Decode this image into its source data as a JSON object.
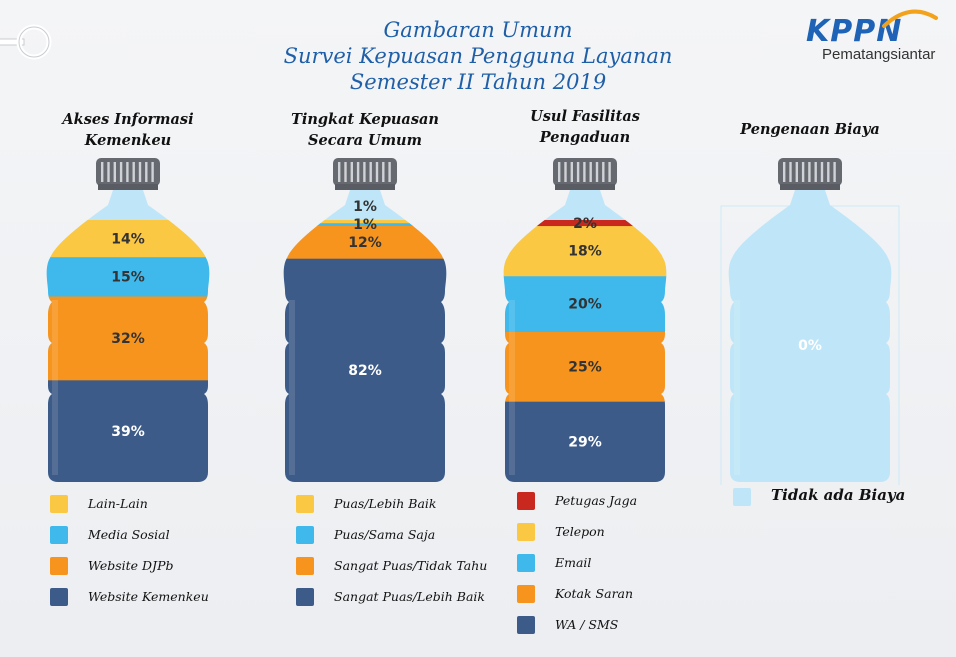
{
  "header": {
    "title_lines": [
      "Gambaran Umum",
      "Survei Kepuasan Pengguna Layanan",
      "Semester II Tahun 2019"
    ],
    "logo_text": "KPPN",
    "logo_subtext": "Pematangsiantar"
  },
  "colors": {
    "dark_blue": "#3d5b88",
    "orange": "#f7941e",
    "light_blue": "#3fb9ec",
    "yellow": "#fbc843",
    "red": "#c8281e",
    "bottle_empty": "#bfe6f8",
    "cap": "#666a70"
  },
  "chart_data": [
    {
      "type": "bar",
      "title": "Akses Informasi Kemenkeu",
      "title_lines": [
        "Akses Informasi",
        "Kemenkeu"
      ],
      "categories": [
        "Website Kemenkeu",
        "Website DJPb",
        "Media Sosial",
        "Lain-Lain"
      ],
      "values": [
        39,
        32,
        15,
        14
      ],
      "labels": [
        "39%",
        "32%",
        "15%",
        "14%"
      ],
      "colors": [
        "#3d5b88",
        "#f7941e",
        "#3fb9ec",
        "#fbc843"
      ],
      "legend": [
        "Lain-Lain",
        "Media Sosial",
        "Website DJPb",
        "Website Kemenkeu"
      ],
      "legend_colors": [
        "#fbc843",
        "#3fb9ec",
        "#f7941e",
        "#3d5b88"
      ]
    },
    {
      "type": "bar",
      "title": "Tingkat Kepuasan Secara Umum",
      "title_lines": [
        "Tingkat Kepuasan",
        "Secara Umum"
      ],
      "categories": [
        "Sangat Puas/Lebih Baik",
        "Sangat Puas/Tidak Tahu",
        "Puas/Sama Saja",
        "Puas/Lebih Baik"
      ],
      "values": [
        82,
        12,
        1,
        1
      ],
      "labels": [
        "82%",
        "12%",
        "1%",
        "1%"
      ],
      "colors": [
        "#3d5b88",
        "#f7941e",
        "#3fb9ec",
        "#fbc843"
      ],
      "legend": [
        "Puas/Lebih Baik",
        "Puas/Sama Saja",
        "Sangat Puas/Tidak Tahu",
        "Sangat Puas/Lebih Baik"
      ],
      "legend_colors": [
        "#fbc843",
        "#3fb9ec",
        "#f7941e",
        "#3d5b88"
      ]
    },
    {
      "type": "bar",
      "title": "Usul Fasilitas Pengaduan",
      "title_lines": [
        "Usul Fasilitas",
        "Pengaduan"
      ],
      "categories": [
        "WA / SMS",
        "Kotak Saran",
        "Email",
        "Telepon",
        "Petugas Jaga"
      ],
      "values": [
        29,
        25,
        20,
        18,
        2
      ],
      "labels": [
        "29%",
        "25%",
        "20%",
        "18%",
        "2%"
      ],
      "colors": [
        "#3d5b88",
        "#f7941e",
        "#3fb9ec",
        "#fbc843",
        "#c8281e"
      ],
      "legend": [
        "Petugas Jaga",
        "Telepon",
        "Email",
        "Kotak Saran",
        "WA / SMS"
      ],
      "legend_colors": [
        "#c8281e",
        "#fbc843",
        "#3fb9ec",
        "#f7941e",
        "#3d5b88"
      ]
    },
    {
      "type": "bar",
      "title": "Pengenaan Biaya",
      "title_lines": [
        "Pengenaan Biaya"
      ],
      "categories": [
        "Tidak ada Biaya"
      ],
      "values": [
        0
      ],
      "labels": [
        "0%"
      ],
      "colors": [
        "#bfe6f8"
      ],
      "legend": [
        "Tidak ada Biaya"
      ],
      "legend_colors": [
        "#bfe6f8"
      ]
    }
  ]
}
